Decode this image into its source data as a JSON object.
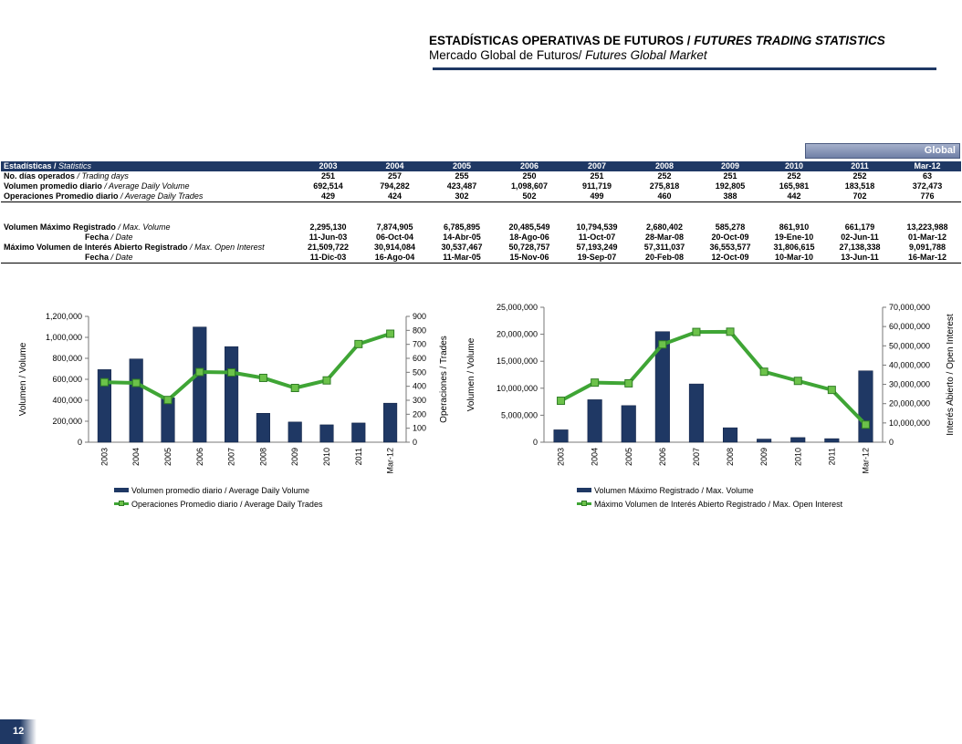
{
  "header": {
    "title_es": "ESTADÍSTICAS OPERATIVAS DE FUTUROS",
    "title_sep": " / ",
    "title_en": "FUTURES TRADING STATISTICS",
    "subtitle_es": "Mercado Global de Futuros/",
    "subtitle_en": " Futures Global Market"
  },
  "tab_label": "Global",
  "table": {
    "header_label_es": "Estadísticas / ",
    "header_label_en": "Statistics",
    "years": [
      "2003",
      "2004",
      "2005",
      "2006",
      "2007",
      "2008",
      "2009",
      "2010",
      "2011",
      "Mar-12"
    ],
    "rows": [
      {
        "es": "No. días operados",
        "en": "Trading days",
        "values": [
          "251",
          "257",
          "255",
          "250",
          "251",
          "252",
          "251",
          "252",
          "252",
          "63"
        ]
      },
      {
        "es": "Volumen promedio diario",
        "en": "Average Daily Volume",
        "values": [
          "692,514",
          "794,282",
          "423,487",
          "1,098,607",
          "911,719",
          "275,818",
          "192,805",
          "165,981",
          "183,518",
          "372,473"
        ]
      },
      {
        "es": "Operaciones Promedio diario",
        "en": "Average Daily Trades",
        "values": [
          "429",
          "424",
          "302",
          "502",
          "499",
          "460",
          "388",
          "442",
          "702",
          "776"
        ]
      }
    ],
    "rows2": [
      {
        "es": "Volumen Máximo Registrado",
        "en": "Max. Volume",
        "indent": false,
        "values": [
          "2,295,130",
          "7,874,905",
          "6,785,895",
          "20,485,549",
          "10,794,539",
          "2,680,402",
          "585,278",
          "861,910",
          "661,179",
          "13,223,988"
        ]
      },
      {
        "es": "Fecha",
        "en": "Date",
        "indent": true,
        "values": [
          "11-Jun-03",
          "06-Oct-04",
          "14-Abr-05",
          "18-Ago-06",
          "11-Oct-07",
          "28-Mar-08",
          "20-Oct-09",
          "19-Ene-10",
          "02-Jun-11",
          "01-Mar-12"
        ]
      },
      {
        "es": "Máximo Volumen de Interés Abierto Registrado",
        "en": "Max. Open Interest",
        "indent": false,
        "values": [
          "21,509,722",
          "30,914,084",
          "30,537,467",
          "50,728,757",
          "57,193,249",
          "57,311,037",
          "36,553,577",
          "31,806,615",
          "27,138,338",
          "9,091,788"
        ]
      },
      {
        "es": "Fecha",
        "en": "Date",
        "indent": true,
        "values": [
          "11-Dic-03",
          "16-Ago-04",
          "11-Mar-05",
          "15-Nov-06",
          "19-Sep-07",
          "20-Feb-08",
          "12-Oct-09",
          "10-Mar-10",
          "13-Jun-11",
          "16-Mar-12"
        ]
      }
    ]
  },
  "chart_data": [
    {
      "type": "bar",
      "categories": [
        "2003",
        "2004",
        "2005",
        "2006",
        "2007",
        "2008",
        "2009",
        "2010",
        "2011",
        "Mar-12"
      ],
      "series": [
        {
          "name": "Volumen promedio diario / Average Daily Volume",
          "type": "bar",
          "axis": "left",
          "values": [
            692514,
            794282,
            423487,
            1098607,
            911719,
            275818,
            192805,
            165981,
            183518,
            372473
          ]
        },
        {
          "name": "Operaciones Promedio diario / Average Daily Trades",
          "type": "line",
          "axis": "right",
          "values": [
            429,
            424,
            302,
            502,
            499,
            460,
            388,
            442,
            702,
            776
          ]
        }
      ],
      "ylabel": "Volumen / Volume",
      "y2label": "Operaciones / Trades",
      "ylim": [
        0,
        1200000
      ],
      "y2lim": [
        0,
        900
      ],
      "yticks": [
        "0",
        "200,000",
        "400,000",
        "600,000",
        "800,000",
        "1,000,000",
        "1,200,000"
      ],
      "y2ticks": [
        "0",
        "100",
        "200",
        "300",
        "400",
        "500",
        "600",
        "700",
        "800",
        "900"
      ],
      "legend": "bottom",
      "grid": false
    },
    {
      "type": "bar",
      "categories": [
        "2003",
        "2004",
        "2005",
        "2006",
        "2007",
        "2008",
        "2009",
        "2010",
        "2011",
        "Mar-12"
      ],
      "series": [
        {
          "name": "Volumen Máximo Registrado / Max. Volume",
          "type": "bar",
          "axis": "left",
          "values": [
            2295130,
            7874905,
            6785895,
            20485549,
            10794539,
            2680402,
            585278,
            861910,
            661179,
            13223988
          ]
        },
        {
          "name": "Máximo Volumen de Interés Abierto Registrado / Max. Open Interest",
          "type": "line",
          "axis": "right",
          "values": [
            21509722,
            30914084,
            30537467,
            50728757,
            57193249,
            57311037,
            36553577,
            31806615,
            27138338,
            9091788
          ]
        }
      ],
      "ylabel": "Volumen / Volume",
      "y2label": "Interés Abierto / Open Interest",
      "ylim": [
        0,
        25000000
      ],
      "y2lim": [
        0,
        70000000
      ],
      "yticks": [
        "0",
        "5,000,000",
        "10,000,000",
        "15,000,000",
        "20,000,000",
        "25,000,000"
      ],
      "y2ticks": [
        "0",
        "10,000,000",
        "20,000,000",
        "30,000,000",
        "40,000,000",
        "50,000,000",
        "60,000,000",
        "70,000,000"
      ],
      "legend": "bottom",
      "grid": false
    }
  ],
  "colors": {
    "bar": "#1f3864",
    "line": "#3fa535",
    "marker": "#6cc24a",
    "header_bg": "#1f3864"
  },
  "page_number": "12"
}
